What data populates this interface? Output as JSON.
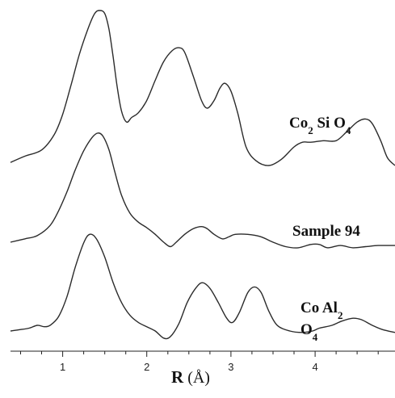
{
  "chart_data": {
    "type": "line",
    "xlabel": "R",
    "xunit": "(Å)",
    "xlim": [
      0.38,
      4.95
    ],
    "x_ticks": [
      1,
      2,
      3,
      4
    ],
    "x_minor_step": 0.25,
    "grid": false,
    "y_axis_visible": false,
    "series": [
      {
        "name": "Co2 Si O4",
        "label_parts": {
          "el1": "Co",
          "sub1": "2",
          "el2": " Si O",
          "sub2": "4"
        },
        "points": [
          [
            0.38,
            0.02
          ],
          [
            0.55,
            0.06
          ],
          [
            0.75,
            0.1
          ],
          [
            0.9,
            0.2
          ],
          [
            1.0,
            0.33
          ],
          [
            1.1,
            0.52
          ],
          [
            1.2,
            0.72
          ],
          [
            1.3,
            0.88
          ],
          [
            1.38,
            0.98
          ],
          [
            1.44,
            1.0
          ],
          [
            1.5,
            0.98
          ],
          [
            1.55,
            0.88
          ],
          [
            1.6,
            0.7
          ],
          [
            1.65,
            0.5
          ],
          [
            1.7,
            0.35
          ],
          [
            1.76,
            0.28
          ],
          [
            1.82,
            0.31
          ],
          [
            1.9,
            0.34
          ],
          [
            2.0,
            0.42
          ],
          [
            2.1,
            0.55
          ],
          [
            2.2,
            0.67
          ],
          [
            2.3,
            0.74
          ],
          [
            2.38,
            0.76
          ],
          [
            2.45,
            0.73
          ],
          [
            2.55,
            0.58
          ],
          [
            2.65,
            0.42
          ],
          [
            2.72,
            0.37
          ],
          [
            2.8,
            0.42
          ],
          [
            2.87,
            0.5
          ],
          [
            2.93,
            0.53
          ],
          [
            3.0,
            0.48
          ],
          [
            3.08,
            0.34
          ],
          [
            3.18,
            0.12
          ],
          [
            3.3,
            0.03
          ],
          [
            3.45,
            0.0
          ],
          [
            3.6,
            0.04
          ],
          [
            3.75,
            0.12
          ],
          [
            3.85,
            0.15
          ],
          [
            3.95,
            0.15
          ],
          [
            4.1,
            0.16
          ],
          [
            4.25,
            0.16
          ],
          [
            4.38,
            0.22
          ],
          [
            4.5,
            0.28
          ],
          [
            4.6,
            0.3
          ],
          [
            4.68,
            0.27
          ],
          [
            4.78,
            0.16
          ],
          [
            4.86,
            0.05
          ],
          [
            4.95,
            0.0
          ]
        ]
      },
      {
        "name": "Sample 94",
        "label_parts": {
          "text": "Sample 94"
        },
        "points": [
          [
            0.38,
            0.0
          ],
          [
            0.55,
            0.03
          ],
          [
            0.7,
            0.06
          ],
          [
            0.85,
            0.15
          ],
          [
            0.95,
            0.28
          ],
          [
            1.05,
            0.45
          ],
          [
            1.15,
            0.65
          ],
          [
            1.25,
            0.82
          ],
          [
            1.35,
            0.94
          ],
          [
            1.42,
            0.98
          ],
          [
            1.48,
            0.95
          ],
          [
            1.55,
            0.83
          ],
          [
            1.62,
            0.63
          ],
          [
            1.7,
            0.42
          ],
          [
            1.8,
            0.26
          ],
          [
            1.9,
            0.18
          ],
          [
            2.0,
            0.13
          ],
          [
            2.1,
            0.07
          ],
          [
            2.2,
            0.0
          ],
          [
            2.28,
            -0.04
          ],
          [
            2.35,
            0.0
          ],
          [
            2.45,
            0.07
          ],
          [
            2.55,
            0.12
          ],
          [
            2.65,
            0.14
          ],
          [
            2.72,
            0.12
          ],
          [
            2.8,
            0.07
          ],
          [
            2.9,
            0.03
          ],
          [
            2.98,
            0.05
          ],
          [
            3.05,
            0.07
          ],
          [
            3.2,
            0.07
          ],
          [
            3.35,
            0.05
          ],
          [
            3.5,
            0.0
          ],
          [
            3.65,
            -0.04
          ],
          [
            3.8,
            -0.05
          ],
          [
            3.95,
            -0.02
          ],
          [
            4.05,
            -0.02
          ],
          [
            4.15,
            -0.05
          ],
          [
            4.3,
            -0.03
          ],
          [
            4.45,
            -0.05
          ],
          [
            4.6,
            -0.04
          ],
          [
            4.75,
            -0.03
          ],
          [
            4.95,
            -0.03
          ]
        ]
      },
      {
        "name": "Co Al2 O4",
        "label_parts": {
          "el1": "Co Al",
          "sub1": "2",
          "el2": "O",
          "sub2": "4"
        },
        "points": [
          [
            0.38,
            0.0
          ],
          [
            0.5,
            0.01
          ],
          [
            0.6,
            0.02
          ],
          [
            0.7,
            0.04
          ],
          [
            0.78,
            0.03
          ],
          [
            0.85,
            0.04
          ],
          [
            0.95,
            0.1
          ],
          [
            1.05,
            0.24
          ],
          [
            1.15,
            0.45
          ],
          [
            1.25,
            0.62
          ],
          [
            1.32,
            0.68
          ],
          [
            1.4,
            0.65
          ],
          [
            1.5,
            0.52
          ],
          [
            1.6,
            0.34
          ],
          [
            1.7,
            0.2
          ],
          [
            1.8,
            0.11
          ],
          [
            1.9,
            0.06
          ],
          [
            2.0,
            0.03
          ],
          [
            2.1,
            0.0
          ],
          [
            2.2,
            -0.05
          ],
          [
            2.28,
            -0.04
          ],
          [
            2.38,
            0.05
          ],
          [
            2.48,
            0.2
          ],
          [
            2.58,
            0.3
          ],
          [
            2.66,
            0.34
          ],
          [
            2.75,
            0.3
          ],
          [
            2.85,
            0.2
          ],
          [
            2.95,
            0.09
          ],
          [
            3.02,
            0.06
          ],
          [
            3.1,
            0.13
          ],
          [
            3.2,
            0.27
          ],
          [
            3.28,
            0.31
          ],
          [
            3.36,
            0.27
          ],
          [
            3.45,
            0.14
          ],
          [
            3.55,
            0.04
          ],
          [
            3.7,
            0.0
          ],
          [
            3.85,
            -0.01
          ],
          [
            3.97,
            0.0
          ],
          [
            4.05,
            0.02
          ],
          [
            4.2,
            0.04
          ],
          [
            4.32,
            0.07
          ],
          [
            4.45,
            0.09
          ],
          [
            4.55,
            0.08
          ],
          [
            4.68,
            0.04
          ],
          [
            4.8,
            0.01
          ],
          [
            4.95,
            -0.01
          ]
        ]
      }
    ]
  }
}
